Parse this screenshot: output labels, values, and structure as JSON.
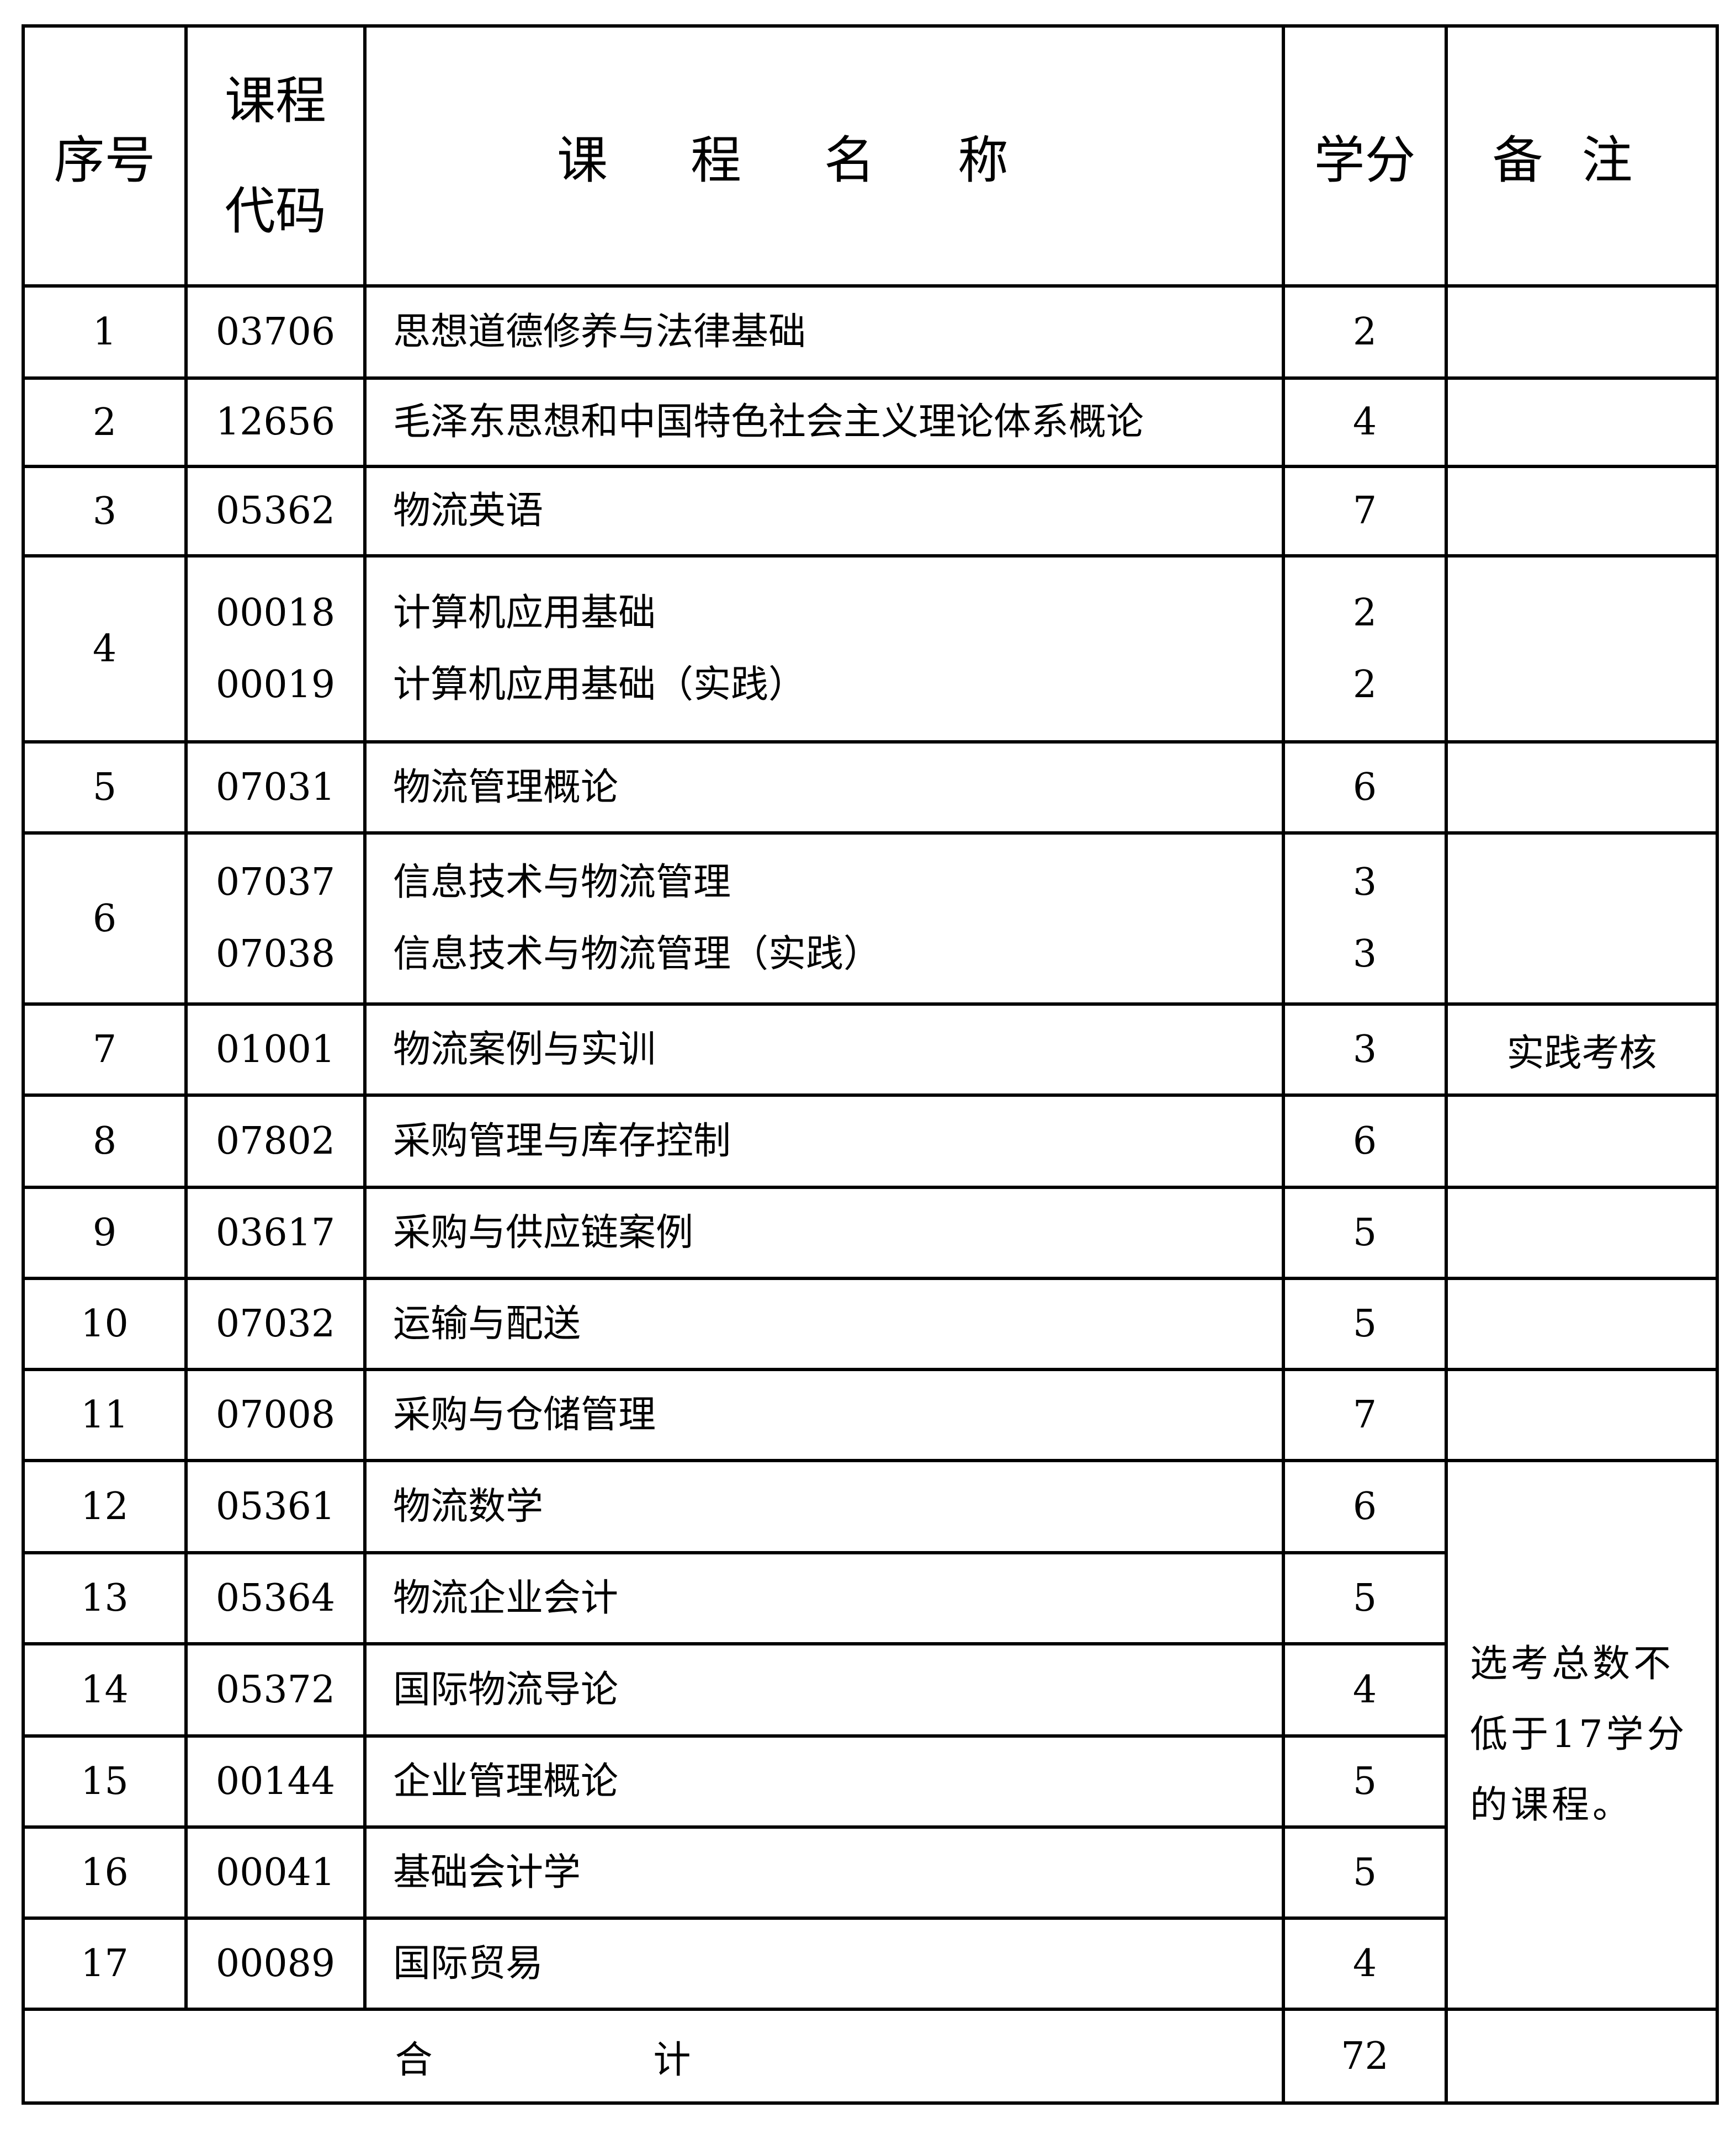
{
  "headers": {
    "index": "序号",
    "code_line1": "课程",
    "code_line2": "代码",
    "name": "课程名称",
    "credits": "学分",
    "remark": "备注"
  },
  "rows": [
    {
      "index": "1",
      "codes": [
        "03706"
      ],
      "names": [
        "思想道德修养与法律基础"
      ],
      "credits": [
        "2"
      ]
    },
    {
      "index": "2",
      "codes": [
        "12656"
      ],
      "names": [
        "毛泽东思想和中国特色社会主义理论体系概论"
      ],
      "credits": [
        "4"
      ]
    },
    {
      "index": "3",
      "codes": [
        "05362"
      ],
      "names": [
        "物流英语"
      ],
      "credits": [
        "7"
      ]
    },
    {
      "index": "4",
      "codes": [
        "00018",
        "00019"
      ],
      "names": [
        "计算机应用基础",
        "计算机应用基础（实践）"
      ],
      "credits": [
        "2",
        "2"
      ]
    },
    {
      "index": "5",
      "codes": [
        "07031"
      ],
      "names": [
        "物流管理概论"
      ],
      "credits": [
        "6"
      ]
    },
    {
      "index": "6",
      "codes": [
        "07037",
        "07038"
      ],
      "names": [
        "信息技术与物流管理",
        "信息技术与物流管理（实践）"
      ],
      "credits": [
        "3",
        "3"
      ]
    },
    {
      "index": "7",
      "codes": [
        "01001"
      ],
      "names": [
        "物流案例与实训"
      ],
      "credits": [
        "3"
      ],
      "remark": "实践考核"
    },
    {
      "index": "8",
      "codes": [
        "07802"
      ],
      "names": [
        "采购管理与库存控制"
      ],
      "credits": [
        "6"
      ]
    },
    {
      "index": "9",
      "codes": [
        "03617"
      ],
      "names": [
        "采购与供应链案例"
      ],
      "credits": [
        "5"
      ]
    },
    {
      "index": "10",
      "codes": [
        "07032"
      ],
      "names": [
        "运输与配送"
      ],
      "credits": [
        "5"
      ]
    },
    {
      "index": "11",
      "codes": [
        "07008"
      ],
      "names": [
        "采购与仓储管理"
      ],
      "credits": [
        "7"
      ]
    },
    {
      "index": "12",
      "codes": [
        "05361"
      ],
      "names": [
        "物流数学"
      ],
      "credits": [
        "6"
      ]
    },
    {
      "index": "13",
      "codes": [
        "05364"
      ],
      "names": [
        "物流企业会计"
      ],
      "credits": [
        "5"
      ]
    },
    {
      "index": "14",
      "codes": [
        "05372"
      ],
      "names": [
        "国际物流导论"
      ],
      "credits": [
        "4"
      ]
    },
    {
      "index": "15",
      "codes": [
        "00144"
      ],
      "names": [
        "企业管理概论"
      ],
      "credits": [
        "5"
      ]
    },
    {
      "index": "16",
      "codes": [
        "00041"
      ],
      "names": [
        "基础会计学"
      ],
      "credits": [
        "5"
      ]
    },
    {
      "index": "17",
      "codes": [
        "00089"
      ],
      "names": [
        "国际贸易"
      ],
      "credits": [
        "4"
      ]
    }
  ],
  "elective_remark": "选考总数不低于17学分的课程。",
  "total": {
    "label": "合计",
    "credits": "72"
  }
}
